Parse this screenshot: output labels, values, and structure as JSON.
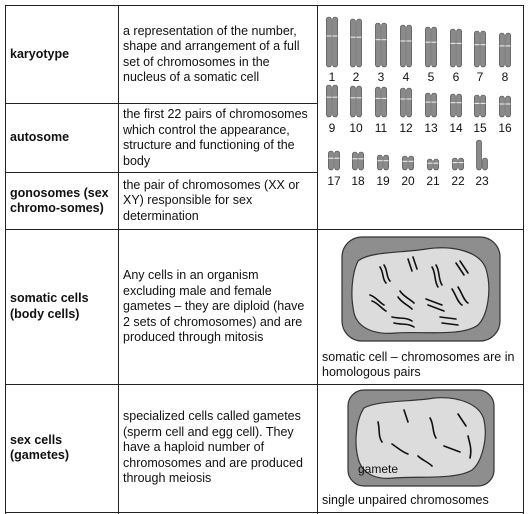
{
  "rows": [
    {
      "term": "karyotype",
      "definition": "a representation of the number, shape and arrangement of a full set of chromosomes in the nucleus of a somatic cell"
    },
    {
      "term": "autosome",
      "definition": "the first 22 pairs of chromosomes which control the appearance, structure and functioning of the body"
    },
    {
      "term": "gonosomes (sex chromo-somes)",
      "definition": "the pair of chromosomes (XX or  XY) responsible for sex determination"
    },
    {
      "term": "somatic cells (body cells)",
      "definition": "Any cells in an organism excluding male and female gametes – they are diploid (have 2 sets of chromosomes) and are produced through mitosis"
    },
    {
      "term": "sex cells (gametes)",
      "definition": "specialized cells called gametes (sperm cell and egg cell).  They have a haploid number of chromosomes and are produced through meiosis"
    }
  ],
  "karyotype_numbers": {
    "row1": [
      "1",
      "2",
      "3",
      "4",
      "5",
      "6",
      "7",
      "8"
    ],
    "row2": [
      "9",
      "10",
      "11",
      "12",
      "13",
      "14",
      "15",
      "16"
    ],
    "row3": [
      "17",
      "18",
      "19",
      "20",
      "21",
      "22",
      "23"
    ]
  },
  "somatic_caption": "somatic cell – chromosomes are in homologous pairs",
  "gamete_label": "gamete",
  "gamete_caption": "single unpaired chromosomes"
}
